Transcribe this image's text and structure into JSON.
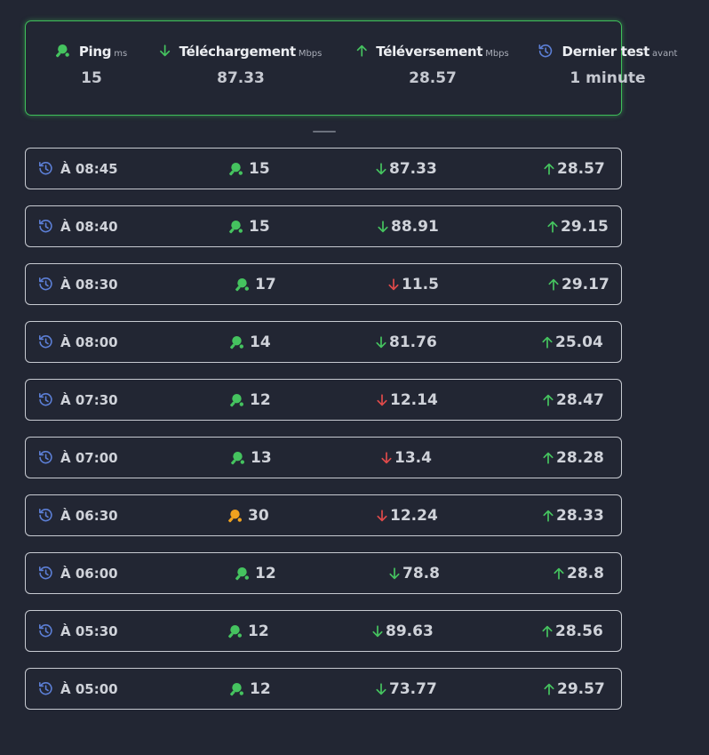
{
  "colors": {
    "good": "#45c35f",
    "warn": "#f0a21f",
    "bad": "#df4a4a",
    "history": "#5c7fd6"
  },
  "summary": {
    "ping": {
      "title": "Ping",
      "unit": "ms",
      "value": "15",
      "icon": "ping-pong-icon"
    },
    "download": {
      "title": "Téléchargement",
      "unit": "Mbps",
      "value": "87.33",
      "icon": "arrow-down-icon"
    },
    "upload": {
      "title": "Téléversement",
      "unit": "Mbps",
      "value": "28.57",
      "icon": "arrow-up-icon"
    },
    "last_test": {
      "title": "Dernier test",
      "unit": "avant",
      "value": "1 minute",
      "icon": "history-icon"
    }
  },
  "history": [
    {
      "time": "À 08:45",
      "ping": "15",
      "ping_status": "good",
      "download": "87.33",
      "download_status": "good",
      "upload": "28.57",
      "upload_status": "good"
    },
    {
      "time": "À 08:40",
      "ping": "15",
      "ping_status": "good",
      "download": "88.91",
      "download_status": "good",
      "upload": "29.15",
      "upload_status": "good"
    },
    {
      "time": "À 08:30",
      "ping": "17",
      "ping_status": "good",
      "download": "11.5",
      "download_status": "bad",
      "upload": "29.17",
      "upload_status": "good"
    },
    {
      "time": "À 08:00",
      "ping": "14",
      "ping_status": "good",
      "download": "81.76",
      "download_status": "good",
      "upload": "25.04",
      "upload_status": "good"
    },
    {
      "time": "À 07:30",
      "ping": "12",
      "ping_status": "good",
      "download": "12.14",
      "download_status": "bad",
      "upload": "28.47",
      "upload_status": "good"
    },
    {
      "time": "À 07:00",
      "ping": "13",
      "ping_status": "good",
      "download": "13.4",
      "download_status": "bad",
      "upload": "28.28",
      "upload_status": "good"
    },
    {
      "time": "À 06:30",
      "ping": "30",
      "ping_status": "warn",
      "download": "12.24",
      "download_status": "bad",
      "upload": "28.33",
      "upload_status": "good"
    },
    {
      "time": "À 06:00",
      "ping": "12",
      "ping_status": "good",
      "download": "78.8",
      "download_status": "good",
      "upload": "28.8",
      "upload_status": "good"
    },
    {
      "time": "À 05:30",
      "ping": "12",
      "ping_status": "good",
      "download": "89.63",
      "download_status": "good",
      "upload": "28.56",
      "upload_status": "good"
    },
    {
      "time": "À 05:00",
      "ping": "12",
      "ping_status": "good",
      "download": "73.77",
      "download_status": "good",
      "upload": "29.57",
      "upload_status": "good"
    }
  ]
}
